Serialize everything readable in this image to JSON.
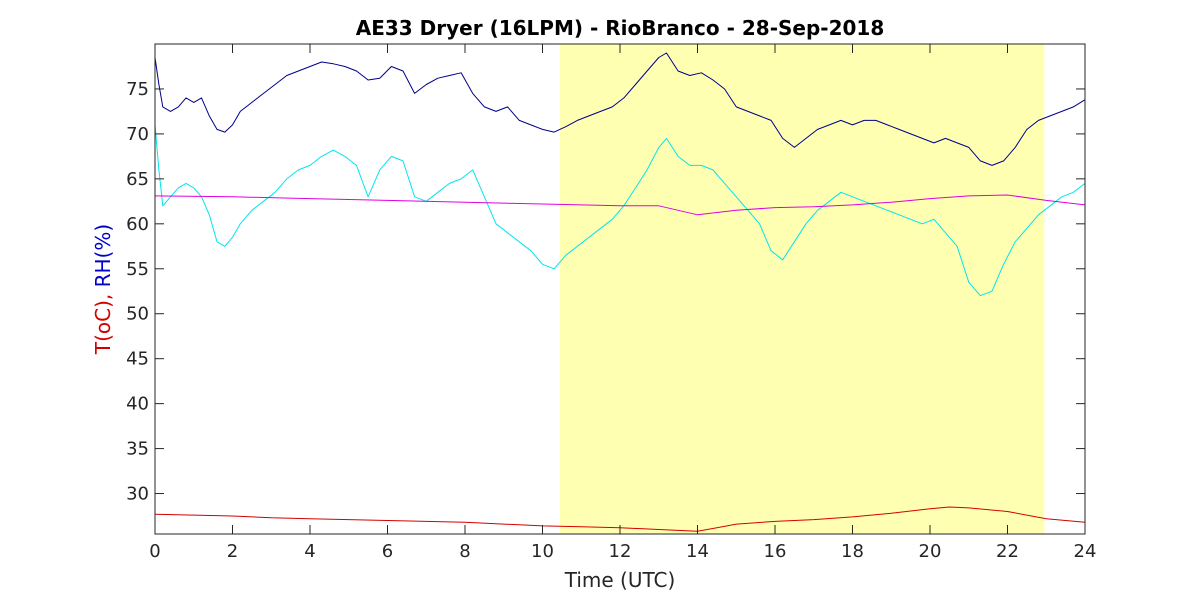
{
  "chart_data": {
    "type": "line",
    "title": "AE33 Dryer (16LPM)  - RioBranco - 28-Sep-2018",
    "xlabel": "Time (UTC)",
    "ylabel": {
      "part1": "T(oC),",
      "part2": "RH(%)",
      "part1_color": "#d40000",
      "part2_color": "#0000cc"
    },
    "xlim": [
      0,
      24
    ],
    "ylim": [
      25.5,
      80
    ],
    "xticks": [
      0,
      2,
      4,
      6,
      8,
      10,
      12,
      14,
      16,
      18,
      20,
      22,
      24
    ],
    "yticks": [
      30,
      35,
      40,
      45,
      50,
      55,
      60,
      65,
      70,
      75
    ],
    "highlight": {
      "x_start": 10.45,
      "x_end": 22.95,
      "color": "#ffffb2"
    },
    "grid": false,
    "series": [
      {
        "color": "#00008b",
        "x": [
          0,
          0.1,
          0.2,
          0.4,
          0.6,
          0.8,
          1.0,
          1.2,
          1.4,
          1.6,
          1.8,
          2.0,
          2.2,
          2.5,
          2.8,
          3.1,
          3.4,
          3.7,
          4.0,
          4.3,
          4.6,
          4.9,
          5.2,
          5.5,
          5.8,
          6.1,
          6.4,
          6.7,
          7.0,
          7.3,
          7.6,
          7.9,
          8.2,
          8.5,
          8.8,
          9.1,
          9.4,
          9.7,
          10.0,
          10.3,
          10.6,
          10.9,
          11.2,
          11.5,
          11.8,
          12.1,
          12.4,
          12.7,
          13.0,
          13.2,
          13.5,
          13.8,
          14.1,
          14.4,
          14.7,
          15.0,
          15.3,
          15.6,
          15.9,
          16.2,
          16.5,
          16.8,
          17.1,
          17.4,
          17.7,
          18.0,
          18.3,
          18.6,
          18.9,
          19.2,
          19.5,
          19.8,
          20.1,
          20.4,
          20.7,
          21.0,
          21.3,
          21.6,
          21.9,
          22.2,
          22.5,
          22.8,
          23.1,
          23.4,
          23.7,
          24.0
        ],
        "y": [
          78.5,
          75.5,
          73,
          72.5,
          73,
          74,
          73.5,
          74,
          72,
          70.5,
          70.2,
          71,
          72.5,
          73.5,
          74.5,
          75.5,
          76.5,
          77,
          77.5,
          78,
          77.8,
          77.5,
          77,
          76,
          76.2,
          77.5,
          77,
          74.5,
          75.5,
          76.2,
          76.5,
          76.8,
          74.5,
          73,
          72.5,
          73,
          71.5,
          71,
          70.5,
          70.2,
          70.8,
          71.5,
          72,
          72.5,
          73,
          74,
          75.5,
          77,
          78.5,
          79,
          77,
          76.5,
          76.8,
          76,
          75,
          73,
          72.5,
          72,
          71.5,
          69.5,
          68.5,
          69.5,
          70.5,
          71,
          71.5,
          71,
          71.5,
          71.5,
          71,
          70.5,
          70,
          69.5,
          69,
          69.5,
          69,
          68.5,
          67,
          66.5,
          67,
          68.5,
          70.5,
          71.5,
          72,
          72.5,
          73,
          73.8
        ]
      },
      {
        "color": "#00e5ee",
        "x": [
          0,
          0.1,
          0.2,
          0.4,
          0.6,
          0.8,
          1.0,
          1.2,
          1.4,
          1.6,
          1.8,
          2.0,
          2.2,
          2.5,
          2.8,
          3.1,
          3.4,
          3.7,
          4.0,
          4.3,
          4.6,
          4.9,
          5.2,
          5.5,
          5.8,
          6.1,
          6.4,
          6.7,
          7.0,
          7.3,
          7.6,
          7.9,
          8.2,
          8.5,
          8.8,
          9.1,
          9.4,
          9.7,
          10.0,
          10.3,
          10.6,
          10.9,
          11.2,
          11.5,
          11.8,
          12.1,
          12.4,
          12.7,
          13.0,
          13.2,
          13.5,
          13.8,
          14.1,
          14.4,
          14.7,
          15.0,
          15.3,
          15.6,
          15.9,
          16.2,
          16.5,
          16.8,
          17.1,
          17.4,
          17.7,
          18.0,
          18.3,
          18.6,
          18.9,
          19.2,
          19.5,
          19.8,
          20.1,
          20.4,
          20.7,
          21.0,
          21.3,
          21.6,
          21.9,
          22.2,
          22.5,
          22.8,
          23.1,
          23.4,
          23.7,
          24.0
        ],
        "y": [
          71,
          66,
          62,
          63,
          64,
          64.5,
          64,
          63,
          61,
          58,
          57.5,
          58.5,
          60,
          61.5,
          62.5,
          63.5,
          65,
          66,
          66.5,
          67.5,
          68.2,
          67.5,
          66.5,
          63,
          66,
          67.5,
          67,
          63,
          62.5,
          63.5,
          64.5,
          65,
          66,
          63,
          60,
          59,
          58,
          57,
          55.5,
          55,
          56.5,
          57.5,
          58.5,
          59.5,
          60.5,
          62,
          64,
          66,
          68.5,
          69.5,
          67.5,
          66.5,
          66.5,
          66,
          64.5,
          63,
          61.5,
          60,
          57,
          56,
          58,
          60,
          61.5,
          62.5,
          63.5,
          63,
          62.5,
          62,
          61.5,
          61,
          60.5,
          60,
          60.5,
          59,
          57.5,
          53.5,
          52,
          52.5,
          55.5,
          58,
          59.5,
          61,
          62,
          63,
          63.5,
          64.5
        ]
      },
      {
        "color": "#e000e0",
        "x": [
          0,
          2,
          4,
          6,
          8,
          10,
          12,
          13,
          14,
          15,
          16,
          17,
          18,
          19,
          20,
          21,
          22,
          23,
          24
        ],
        "y": [
          63.1,
          63,
          62.8,
          62.6,
          62.4,
          62.2,
          62,
          62,
          61,
          61.5,
          61.8,
          61.9,
          62.1,
          62.4,
          62.8,
          63.1,
          63.2,
          62.6,
          62.1
        ]
      },
      {
        "color": "#d40000",
        "x": [
          0,
          1,
          2,
          3,
          4,
          5,
          6,
          7,
          8,
          9,
          10,
          11,
          12,
          13,
          13.5,
          14,
          14.5,
          15,
          16,
          17,
          18,
          19,
          20,
          20.5,
          21,
          22,
          23,
          24
        ],
        "y": [
          27.7,
          27.6,
          27.5,
          27.3,
          27.2,
          27.1,
          27,
          26.9,
          26.8,
          26.6,
          26.4,
          26.3,
          26.2,
          26.0,
          25.9,
          25.8,
          26.2,
          26.6,
          26.9,
          27.1,
          27.4,
          27.8,
          28.3,
          28.5,
          28.4,
          28.0,
          27.2,
          26.8
        ]
      }
    ]
  }
}
